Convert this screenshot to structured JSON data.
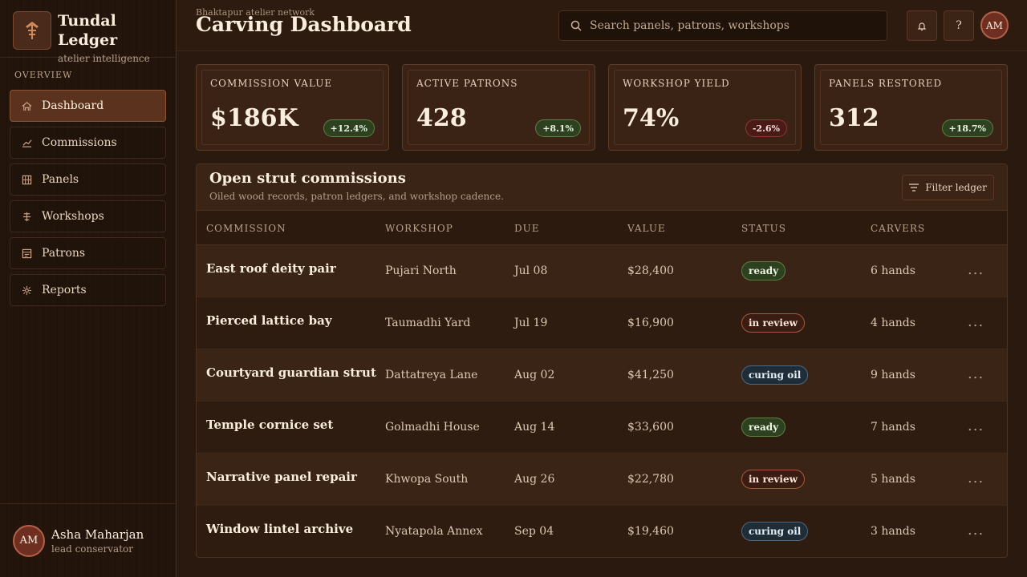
{
  "brand": {
    "title": "Tundal Ledger",
    "subtitle": "atelier intelligence"
  },
  "sidebar": {
    "section": "OVERVIEW",
    "items": [
      {
        "label": "Dashboard",
        "icon": "home-icon"
      },
      {
        "label": "Commissions",
        "icon": "chart-icon"
      },
      {
        "label": "Panels",
        "icon": "grid-icon"
      },
      {
        "label": "Workshops",
        "icon": "signpost-icon"
      },
      {
        "label": "Patrons",
        "icon": "card-icon"
      },
      {
        "label": "Reports",
        "icon": "spark-icon"
      }
    ],
    "active": "Dashboard"
  },
  "user": {
    "initials": "AM",
    "name": "Asha Maharjan",
    "role": "lead conservator"
  },
  "header": {
    "eyebrow": "Bhaktapur atelier network",
    "title": "Carving Dashboard",
    "search_placeholder": "Search panels, patrons, workshops",
    "notify_icon": "bell-icon",
    "help_label": "?",
    "avatar_initials": "AM"
  },
  "metrics": [
    {
      "label": "COMMISSION VALUE",
      "value": "$186K",
      "delta": "+12.4%",
      "trend": "up"
    },
    {
      "label": "ACTIVE PATRONS",
      "value": "428",
      "delta": "+8.1%",
      "trend": "up"
    },
    {
      "label": "WORKSHOP YIELD",
      "value": "74%",
      "delta": "-2.6%",
      "trend": "down"
    },
    {
      "label": "PANELS RESTORED",
      "value": "312",
      "delta": "+18.7%",
      "trend": "up"
    }
  ],
  "table": {
    "title": "Open strut commissions",
    "subtitle": "Oiled wood records, patron ledgers, and workshop cadence.",
    "filter_label": "Filter ledger",
    "columns": [
      "COMMISSION",
      "WORKSHOP",
      "DUE",
      "VALUE",
      "STATUS",
      "CARVERS"
    ],
    "rows": [
      {
        "commission": "East roof deity pair",
        "workshop": "Pujari North",
        "due": "Jul 08",
        "value": "$28,400",
        "status": "ready",
        "carvers": "6 hands"
      },
      {
        "commission": "Pierced lattice bay",
        "workshop": "Taumadhi Yard",
        "due": "Jul 19",
        "value": "$16,900",
        "status": "in review",
        "carvers": "4 hands"
      },
      {
        "commission": "Courtyard guardian strut",
        "workshop": "Dattatreya Lane",
        "due": "Aug 02",
        "value": "$41,250",
        "status": "curing oil",
        "carvers": "9 hands"
      },
      {
        "commission": "Temple cornice set",
        "workshop": "Golmadhi House",
        "due": "Aug 14",
        "value": "$33,600",
        "status": "ready",
        "carvers": "7 hands"
      },
      {
        "commission": "Narrative panel repair",
        "workshop": "Khwopa South",
        "due": "Aug 26",
        "value": "$22,780",
        "status": "in review",
        "carvers": "5 hands"
      },
      {
        "commission": "Window lintel archive",
        "workshop": "Nyatapola Annex",
        "due": "Sep 04",
        "value": "$19,460",
        "status": "curing oil",
        "carvers": "3 hands"
      }
    ],
    "row_action": "..."
  },
  "colors": {
    "accent": "#5a321e",
    "ready": "#2d4020",
    "review": "#3b1c13",
    "curing": "#1f2d38",
    "up": "#5d8044",
    "down": "#8c3a32"
  }
}
